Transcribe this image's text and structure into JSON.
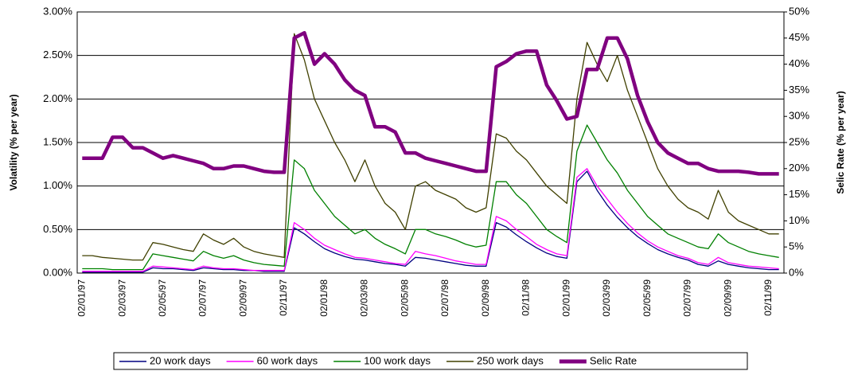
{
  "chart_data": {
    "type": "line",
    "categories": [
      "02/01/97",
      null,
      null,
      null,
      "02/03/97",
      null,
      null,
      null,
      "02/05/97",
      null,
      null,
      null,
      "02/07/97",
      null,
      null,
      null,
      "02/09/97",
      null,
      null,
      null,
      "02/11/97",
      null,
      null,
      null,
      "02/01/98",
      null,
      null,
      null,
      "02/03/98",
      null,
      null,
      null,
      "02/05/98",
      null,
      null,
      null,
      "02/07/98",
      null,
      null,
      null,
      "02/09/98",
      null,
      null,
      null,
      "02/11/98",
      null,
      null,
      null,
      "02/01/99",
      null,
      null,
      null,
      "02/03/99",
      null,
      null,
      null,
      "02/05/99",
      null,
      null,
      null,
      "02/07/99",
      null,
      null,
      null,
      "02/09/99",
      null,
      null,
      null,
      "02/11/99",
      null
    ],
    "ylabel": "Volatility (% per year)",
    "y2label": "Selic Rate (% per year)",
    "ylim": [
      0,
      3
    ],
    "yticks": [
      {
        "value": 0,
        "label": "0.00%"
      },
      {
        "value": 0.5,
        "label": "0.50%"
      },
      {
        "value": 1,
        "label": "1.00%"
      },
      {
        "value": 1.5,
        "label": "1.50%"
      },
      {
        "value": 2,
        "label": "2.00%"
      },
      {
        "value": 2.5,
        "label": "2.50%"
      },
      {
        "value": 3,
        "label": "3.00%"
      }
    ],
    "y2lim": [
      0,
      50
    ],
    "y2ticks": [
      {
        "value": 0,
        "label": "0%"
      },
      {
        "value": 5,
        "label": "5%"
      },
      {
        "value": 10,
        "label": "10%"
      },
      {
        "value": 15,
        "label": "15%"
      },
      {
        "value": 20,
        "label": "20%"
      },
      {
        "value": 25,
        "label": "25%"
      },
      {
        "value": 30,
        "label": "30%"
      },
      {
        "value": 35,
        "label": "35%"
      },
      {
        "value": 40,
        "label": "40%"
      },
      {
        "value": 45,
        "label": "45%"
      },
      {
        "value": 50,
        "label": "50%"
      }
    ],
    "grid": true,
    "legend": "bottom",
    "series": [
      {
        "name": "20 work days",
        "color": "#000080",
        "values": [
          0.01,
          0.01,
          0.01,
          0.01,
          0.01,
          0.01,
          0.01,
          0.06,
          0.05,
          0.05,
          0.04,
          0.03,
          0.06,
          0.05,
          0.04,
          0.04,
          0.03,
          0.03,
          0.02,
          0.02,
          0.02,
          0.52,
          0.45,
          0.36,
          0.28,
          0.23,
          0.19,
          0.16,
          0.15,
          0.13,
          0.11,
          0.1,
          0.08,
          0.18,
          0.17,
          0.15,
          0.13,
          0.11,
          0.09,
          0.08,
          0.08,
          0.58,
          0.53,
          0.44,
          0.36,
          0.29,
          0.23,
          0.19,
          0.17,
          1.05,
          1.17,
          0.95,
          0.78,
          0.64,
          0.52,
          0.42,
          0.34,
          0.27,
          0.22,
          0.18,
          0.15,
          0.1,
          0.08,
          0.14,
          0.1,
          0.08,
          0.06,
          0.05,
          0.04,
          0.04
        ]
      },
      {
        "name": "60 work days",
        "color": "#ff00ff",
        "values": [
          0.02,
          0.02,
          0.02,
          0.02,
          0.02,
          0.02,
          0.02,
          0.08,
          0.07,
          0.06,
          0.05,
          0.04,
          0.08,
          0.06,
          0.05,
          0.05,
          0.04,
          0.03,
          0.03,
          0.03,
          0.03,
          0.58,
          0.5,
          0.4,
          0.32,
          0.27,
          0.22,
          0.18,
          0.17,
          0.15,
          0.13,
          0.11,
          0.1,
          0.25,
          0.22,
          0.2,
          0.17,
          0.14,
          0.12,
          0.1,
          0.1,
          0.65,
          0.6,
          0.5,
          0.42,
          0.33,
          0.27,
          0.22,
          0.2,
          1.1,
          1.2,
          1.0,
          0.85,
          0.7,
          0.57,
          0.46,
          0.37,
          0.3,
          0.25,
          0.2,
          0.17,
          0.12,
          0.1,
          0.18,
          0.12,
          0.1,
          0.08,
          0.07,
          0.06,
          0.05
        ]
      },
      {
        "name": "100 work days",
        "color": "#008000",
        "values": [
          0.05,
          0.05,
          0.05,
          0.04,
          0.04,
          0.04,
          0.04,
          0.22,
          0.2,
          0.18,
          0.16,
          0.14,
          0.25,
          0.2,
          0.17,
          0.2,
          0.15,
          0.12,
          0.1,
          0.09,
          0.08,
          1.3,
          1.2,
          0.95,
          0.8,
          0.65,
          0.55,
          0.45,
          0.5,
          0.4,
          0.33,
          0.28,
          0.22,
          0.5,
          0.5,
          0.45,
          0.42,
          0.38,
          0.33,
          0.3,
          0.32,
          1.05,
          1.05,
          0.9,
          0.8,
          0.65,
          0.5,
          0.42,
          0.35,
          1.4,
          1.7,
          1.5,
          1.3,
          1.15,
          0.95,
          0.8,
          0.65,
          0.55,
          0.45,
          0.4,
          0.35,
          0.3,
          0.28,
          0.45,
          0.35,
          0.3,
          0.25,
          0.22,
          0.2,
          0.18
        ]
      },
      {
        "name": "250 work days",
        "color": "#404000",
        "values": [
          0.2,
          0.2,
          0.18,
          0.17,
          0.16,
          0.15,
          0.15,
          0.35,
          0.33,
          0.3,
          0.27,
          0.25,
          0.45,
          0.38,
          0.33,
          0.4,
          0.3,
          0.25,
          0.22,
          0.2,
          0.18,
          2.75,
          2.45,
          2.0,
          1.75,
          1.5,
          1.3,
          1.05,
          1.3,
          1.0,
          0.8,
          0.7,
          0.5,
          1.0,
          1.05,
          0.95,
          0.9,
          0.85,
          0.75,
          0.7,
          0.75,
          1.6,
          1.55,
          1.4,
          1.3,
          1.15,
          1.0,
          0.9,
          0.8,
          2.0,
          2.65,
          2.4,
          2.2,
          2.5,
          2.1,
          1.8,
          1.5,
          1.2,
          1.0,
          0.85,
          0.75,
          0.7,
          0.62,
          0.95,
          0.7,
          0.6,
          0.55,
          0.5,
          0.45,
          0.45
        ]
      },
      {
        "name": "Selic Rate",
        "color": "#800080",
        "axis": "y2",
        "values": [
          22,
          22,
          22,
          26,
          26,
          24,
          24,
          23,
          22,
          22.5,
          22,
          21.5,
          21,
          20,
          20,
          20.5,
          20.5,
          20,
          19.5,
          19.3,
          19.3,
          45,
          46,
          40,
          42,
          40,
          37,
          35,
          34,
          28,
          28,
          27,
          23,
          23,
          22,
          21.5,
          21,
          20.5,
          20,
          19.5,
          19.5,
          39.5,
          40.5,
          42,
          42.5,
          42.5,
          36,
          33,
          29.5,
          30,
          39,
          39,
          45,
          45,
          41,
          34,
          29,
          25,
          23,
          22,
          21,
          21,
          20,
          19.5,
          19.5,
          19.5,
          19.3,
          19,
          19,
          19
        ]
      }
    ]
  }
}
